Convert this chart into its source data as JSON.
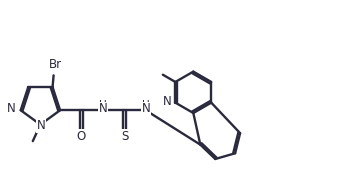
{
  "bg": "#ffffff",
  "bond_color": "#2a2a3e",
  "lw": 1.7,
  "fs": 8.5,
  "figsize": [
    3.5,
    1.87
  ],
  "dpi": 100,
  "xlim": [
    -0.3,
    9.8
  ],
  "ylim": [
    -2.0,
    3.2
  ]
}
